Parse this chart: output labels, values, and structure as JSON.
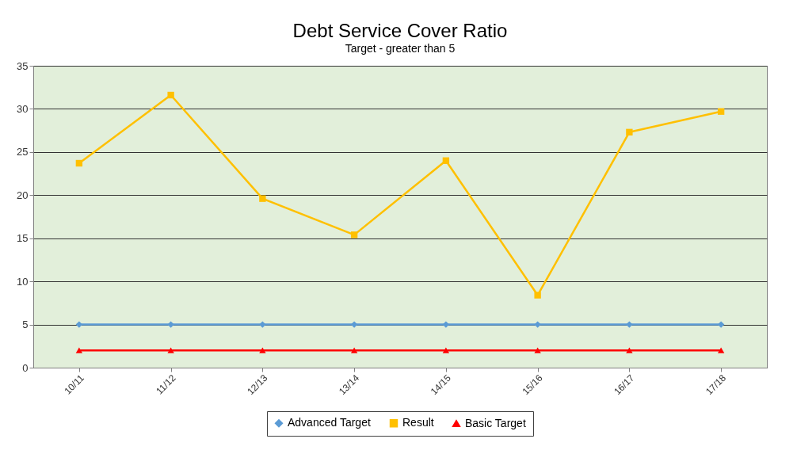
{
  "chart_data": {
    "type": "line",
    "title": "Debt Service Cover Ratio",
    "subtitle": "Target - greater than 5",
    "categories": [
      "10/11",
      "11/12",
      "12/13",
      "13/14",
      "14/15",
      "15/16",
      "16/17",
      "17/18"
    ],
    "series": [
      {
        "name": "Advanced Target",
        "color": "#5b9bd5",
        "marker": "diamond",
        "values": [
          5,
          5,
          5,
          5,
          5,
          5,
          5,
          5
        ]
      },
      {
        "name": "Result",
        "color": "#ffc000",
        "marker": "square",
        "values": [
          23.7,
          31.6,
          19.6,
          15.4,
          24.0,
          8.4,
          27.3,
          29.7
        ]
      },
      {
        "name": "Basic Target",
        "color": "#ff0000",
        "marker": "triangle",
        "values": [
          2,
          2,
          2,
          2,
          2,
          2,
          2,
          2
        ]
      }
    ],
    "ylim": [
      0,
      35
    ],
    "yticks": [
      0,
      5,
      10,
      15,
      20,
      25,
      30,
      35
    ],
    "grid": "y",
    "legend": "bottom"
  }
}
